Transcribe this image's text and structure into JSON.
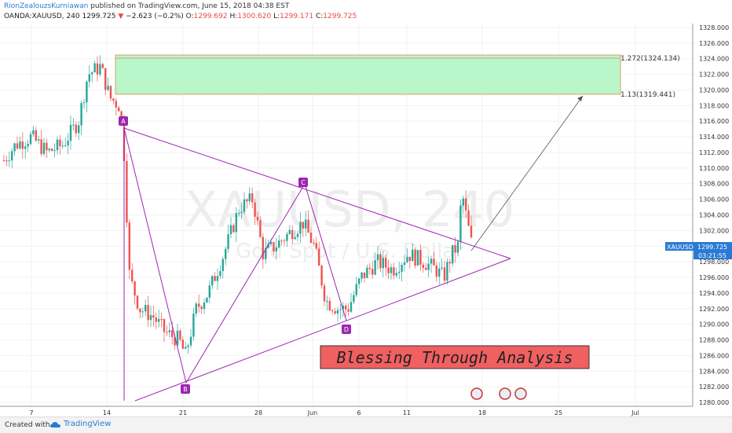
{
  "header": {
    "author": "RionZealouzsKurniawan",
    "published_text": " published on TradingView.com, June 15, 2018 04:38 EST",
    "symbol": "OANDA:XAUUSD, 240",
    "last": "1299.725",
    "change_arrow": "▼",
    "change": "−2.623 (−0.2%)",
    "o_label": "O:",
    "o_val": "1299.692",
    "h_label": "H:",
    "h_val": "1300.620",
    "l_label": "L:",
    "l_val": "1299.171",
    "c_label": "C:",
    "c_val": "1299.725"
  },
  "footer": {
    "created_with": "Created with",
    "brand": "TradingView"
  },
  "chart_data": {
    "type": "candlestick",
    "watermark": "XAUUSD, 240",
    "watermark_sub": "Gold Spot / U.S. Dollar",
    "y_range": [
      1279.5,
      1328.5
    ],
    "y_ticks": [
      "1280.000",
      "1282.000",
      "1284.000",
      "1286.000",
      "1288.000",
      "1290.000",
      "1292.000",
      "1294.000",
      "1296.000",
      "1298.000",
      "1300.000",
      "1302.000",
      "1304.000",
      "1306.000",
      "1308.000",
      "1310.000",
      "1312.000",
      "1314.000",
      "1316.000",
      "1318.000",
      "1320.000",
      "1322.000",
      "1324.000",
      "1326.000",
      "1328.000"
    ],
    "x_ticks": [
      "7",
      "14",
      "21",
      "28",
      "Jun",
      "6",
      "11",
      "18",
      "25",
      "Jul"
    ],
    "price_tag": "XAUUSD",
    "price_tag_value": "1299.725",
    "countdown": "03:21:55",
    "fib_levels": [
      {
        "label": "1.272(1324.134)",
        "price": 1324.134
      },
      {
        "label": "1.13(1319.441)",
        "price": 1319.441
      }
    ],
    "pattern_points": [
      {
        "label": "A",
        "price": 1315.2
      },
      {
        "label": "B",
        "price": 1283.0
      },
      {
        "label": "C",
        "price": 1307.2
      },
      {
        "label": "D",
        "price": 1290.3
      }
    ],
    "banner": "Blessing Through Analysis",
    "colors": {
      "up": "#26a69a",
      "down": "#ef5350",
      "pattern": "#9c27b0",
      "zone": "#b9f6ca",
      "banner": "#f06060",
      "price_tag": "#2a7ad5"
    }
  }
}
